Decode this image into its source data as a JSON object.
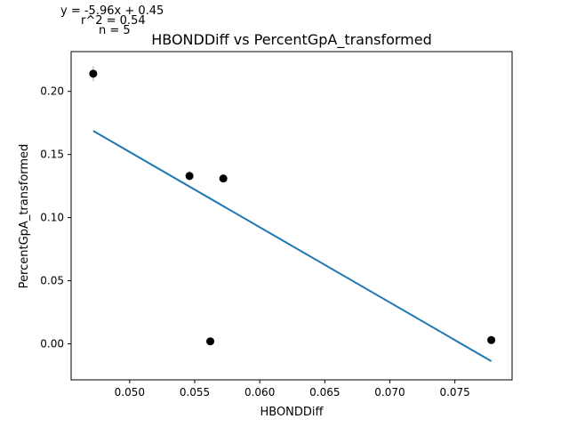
{
  "chart_data": {
    "type": "scatter",
    "title": "HBONDDiff vs PercentGpA_transformed",
    "xlabel": "HBONDDiff",
    "ylabel": "PercentGpA_transformed",
    "xlim": [
      0.0455,
      0.0794
    ],
    "ylim": [
      -0.0285,
      0.2315
    ],
    "xticks": [
      0.05,
      0.055,
      0.06,
      0.065,
      0.07,
      0.075
    ],
    "xtick_labels": [
      "0.050",
      "0.055",
      "0.060",
      "0.065",
      "0.070",
      "0.075"
    ],
    "yticks": [
      0.0,
      0.05,
      0.1,
      0.15,
      0.2
    ],
    "ytick_labels": [
      "0.00",
      "0.05",
      "0.10",
      "0.15",
      "0.20"
    ],
    "grid": false,
    "points": [
      {
        "x": 0.0472,
        "y": 0.214,
        "err": 0.006
      },
      {
        "x": 0.0546,
        "y": 0.133,
        "err": 0.004
      },
      {
        "x": 0.0572,
        "y": 0.131,
        "err": 0.002
      },
      {
        "x": 0.0562,
        "y": 0.002,
        "err": 0.0
      },
      {
        "x": 0.0778,
        "y": 0.003,
        "err": 0.0
      }
    ],
    "fit": {
      "slope": -5.96,
      "intercept": 0.45,
      "x_range": [
        0.0472,
        0.0778
      ]
    },
    "annotations": {
      "equation": "y = -5.96x + 0.45",
      "r2": "r^2 = 0.54",
      "n": "n = 5"
    },
    "colors": {
      "points": "#000000",
      "errorbar": "#c8c8c8",
      "fit_line": "#1f77b4",
      "axes": "#000000"
    }
  }
}
